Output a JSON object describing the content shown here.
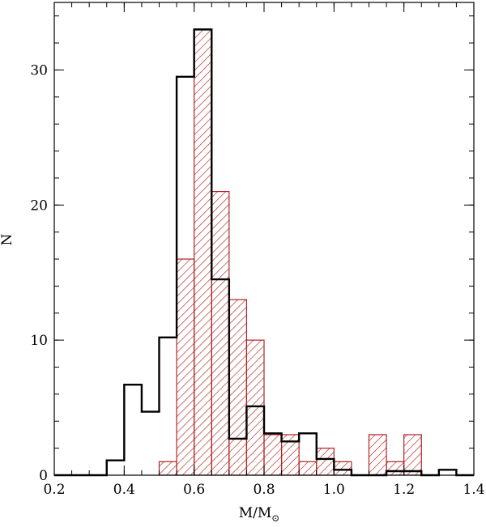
{
  "chart_data": {
    "type": "histogram",
    "xlabel": "M/M",
    "xlabel_subscript": "⊙",
    "ylabel": "N",
    "xlim": [
      0.2,
      1.4
    ],
    "ylim": [
      0,
      35
    ],
    "bin_width": 0.05,
    "x_ticks": [
      "0.2",
      "0.4",
      "0.6",
      "0.8",
      "1.0",
      "1.2",
      "1.4"
    ],
    "x_tick_values": [
      0.2,
      0.4,
      0.6,
      0.8,
      1.0,
      1.2,
      1.4
    ],
    "y_ticks": [
      "0",
      "10",
      "20",
      "30"
    ],
    "y_tick_values": [
      0,
      10,
      20,
      30
    ],
    "x_minor_step": 0.05,
    "y_minor_step": 2,
    "grid": false,
    "legend": "none",
    "series": [
      {
        "style": "open-outline",
        "color": "#000000",
        "bin_edges": [
          0.2,
          0.25,
          0.3,
          0.35,
          0.4,
          0.45,
          0.5,
          0.55,
          0.6,
          0.65,
          0.7,
          0.75,
          0.8,
          0.85,
          0.9,
          0.95,
          1.0,
          1.05,
          1.1,
          1.15,
          1.2,
          1.25,
          1.3,
          1.35,
          1.4
        ],
        "values": [
          0,
          0,
          0,
          1.1,
          6.7,
          4.7,
          10.2,
          29.5,
          33,
          14.5,
          2.7,
          5.1,
          3.1,
          2.5,
          3.1,
          1.2,
          0.4,
          0,
          0,
          0.3,
          0.3,
          0,
          0.4,
          0
        ]
      },
      {
        "style": "filled-hatched",
        "color": "#b22222",
        "bin_edges": [
          0.5,
          0.55,
          0.6,
          0.65,
          0.7,
          0.75,
          0.8,
          0.85,
          0.9,
          0.95,
          1.0,
          1.05,
          1.1,
          1.15,
          1.2,
          1.25
        ],
        "values": [
          1,
          16,
          33,
          21,
          13,
          10,
          3,
          3,
          1,
          2,
          1,
          0,
          3,
          1,
          3
        ]
      }
    ]
  }
}
